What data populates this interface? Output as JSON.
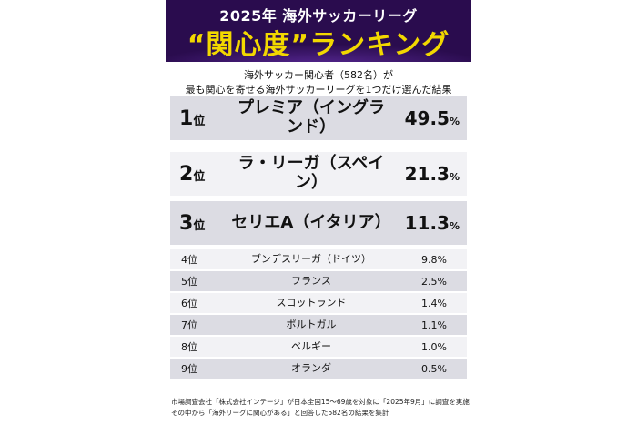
{
  "header": {
    "title_line1": "2025年 海外サッカーリーグ",
    "title_line2": "“関心度”ランキング"
  },
  "subtitle": {
    "line1": "海外サッカー関心者（582名）が",
    "line2": "最も関心を寄せる海外サッカーリーグを1つだけ選んだ結果"
  },
  "rank_suffix": "位",
  "percent_sign": "%",
  "colors": {
    "banner_bg": "#2a0c4e",
    "title_line2": "#f2d800",
    "row_shade": "#dcdce3",
    "row_light": "#f2f2f5"
  },
  "ranking": [
    {
      "rank": "1",
      "league": "プレミア（イングランド）",
      "value": "49.5"
    },
    {
      "rank": "2",
      "league": "ラ・リーガ（スペイン）",
      "value": "21.3"
    },
    {
      "rank": "3",
      "league": "セリエA（イタリア）",
      "value": "11.3"
    },
    {
      "rank": "4",
      "league": "ブンデスリーガ（ドイツ）",
      "value": "9.8"
    },
    {
      "rank": "5",
      "league": "フランス",
      "value": "2.5"
    },
    {
      "rank": "6",
      "league": "スコットランド",
      "value": "1.4"
    },
    {
      "rank": "7",
      "league": "ポルトガル",
      "value": "1.1"
    },
    {
      "rank": "8",
      "league": "ベルギー",
      "value": "1.0"
    },
    {
      "rank": "9",
      "league": "オランダ",
      "value": "0.5"
    }
  ],
  "footnote": {
    "line1": "市場調査会社「株式会社インテージ」が日本全国15〜69歳を対象に「2025年9月」に調査を実施",
    "line2": "その中から「海外リーグに関心がある」と回答した582名の結果を集計"
  }
}
